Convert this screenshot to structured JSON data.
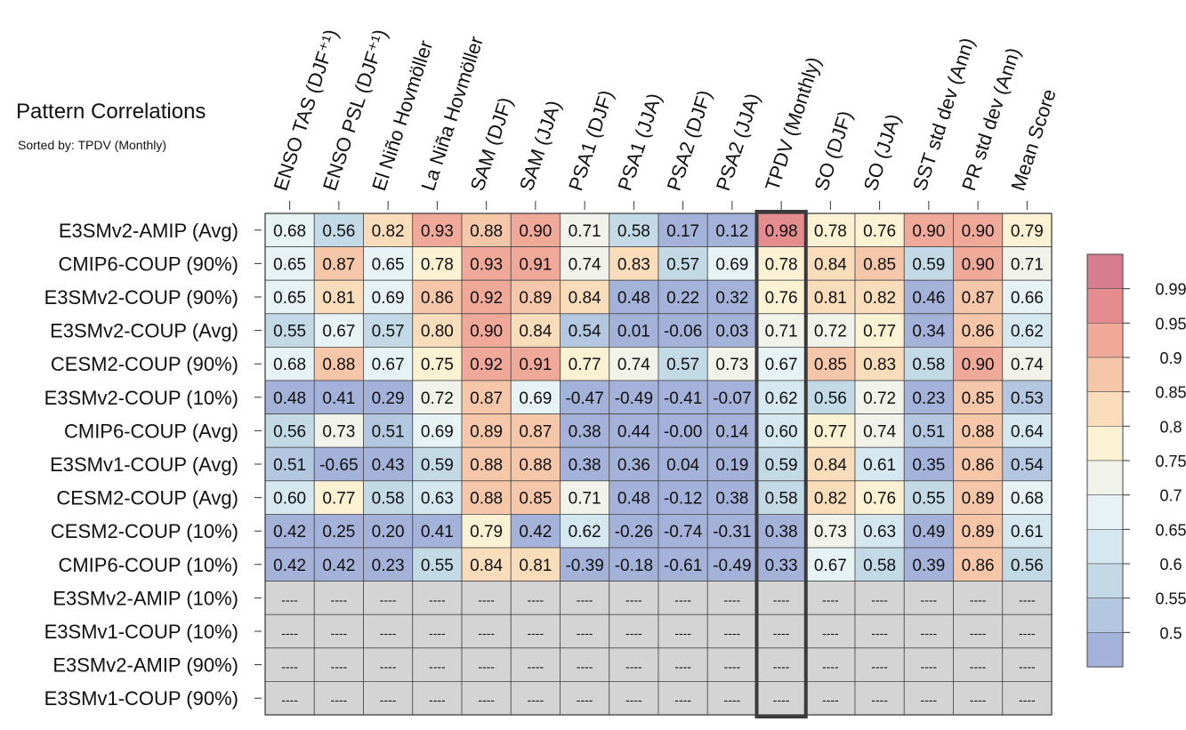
{
  "chart_data": {
    "type": "heatmap",
    "title": "Pattern Correlations",
    "subtitle": "Sorted by: TPDV (Monthly)",
    "columns": [
      "ENSO TAS (DJF⁺¹)",
      "ENSO PSL (DJF⁺¹)",
      "El Niño Hovmöller",
      "La Niña Hovmöller",
      "SAM (DJF)",
      "SAM (JJA)",
      "PSA1 (DJF)",
      "PSA1 (JJA)",
      "PSA2 (DJF)",
      "PSA2 (JJA)",
      "TPDV (Monthly)",
      "SO (DJF)",
      "SO (JJA)",
      "SST std dev (Ann)",
      "PR std dev (Ann)",
      "Mean Score"
    ],
    "rows": [
      "E3SMv2-AMIP (Avg)",
      "CMIP6-COUP (90%)",
      "E3SMv2-COUP (90%)",
      "E3SMv2-COUP (Avg)",
      "CESM2-COUP (90%)",
      "E3SMv2-COUP (10%)",
      "CMIP6-COUP (Avg)",
      "E3SMv1-COUP (Avg)",
      "CESM2-COUP (Avg)",
      "CESM2-COUP (10%)",
      "CMIP6-COUP (10%)",
      "E3SMv2-AMIP (10%)",
      "E3SMv1-COUP (10%)",
      "E3SMv2-AMIP (90%)",
      "E3SMv1-COUP (90%)"
    ],
    "values": [
      [
        "0.68",
        "0.56",
        "0.82",
        "0.93",
        "0.88",
        "0.90",
        "0.71",
        "0.58",
        "0.17",
        "0.12",
        "0.98",
        "0.78",
        "0.76",
        "0.90",
        "0.90",
        "0.79"
      ],
      [
        "0.65",
        "0.87",
        "0.65",
        "0.78",
        "0.93",
        "0.91",
        "0.74",
        "0.83",
        "0.57",
        "0.69",
        "0.78",
        "0.84",
        "0.85",
        "0.59",
        "0.90",
        "0.71"
      ],
      [
        "0.65",
        "0.81",
        "0.69",
        "0.86",
        "0.92",
        "0.89",
        "0.84",
        "0.48",
        "0.22",
        "0.32",
        "0.76",
        "0.81",
        "0.82",
        "0.46",
        "0.87",
        "0.66"
      ],
      [
        "0.55",
        "0.67",
        "0.57",
        "0.80",
        "0.90",
        "0.84",
        "0.54",
        "0.01",
        "-0.06",
        "0.03",
        "0.71",
        "0.72",
        "0.77",
        "0.34",
        "0.86",
        "0.62"
      ],
      [
        "0.68",
        "0.88",
        "0.67",
        "0.75",
        "0.92",
        "0.91",
        "0.77",
        "0.74",
        "0.57",
        "0.73",
        "0.67",
        "0.85",
        "0.83",
        "0.58",
        "0.90",
        "0.74"
      ],
      [
        "0.48",
        "0.41",
        "0.29",
        "0.72",
        "0.87",
        "0.69",
        "-0.47",
        "-0.49",
        "-0.41",
        "-0.07",
        "0.62",
        "0.56",
        "0.72",
        "0.23",
        "0.85",
        "0.53"
      ],
      [
        "0.56",
        "0.73",
        "0.51",
        "0.69",
        "0.89",
        "0.87",
        "0.38",
        "0.44",
        "-0.00",
        "0.14",
        "0.60",
        "0.77",
        "0.74",
        "0.51",
        "0.88",
        "0.64"
      ],
      [
        "0.51",
        "-0.65",
        "0.43",
        "0.59",
        "0.88",
        "0.88",
        "0.38",
        "0.36",
        "0.04",
        "0.19",
        "0.59",
        "0.84",
        "0.61",
        "0.35",
        "0.86",
        "0.54"
      ],
      [
        "0.60",
        "0.77",
        "0.58",
        "0.63",
        "0.88",
        "0.85",
        "0.71",
        "0.48",
        "-0.12",
        "0.38",
        "0.58",
        "0.82",
        "0.76",
        "0.55",
        "0.89",
        "0.68"
      ],
      [
        "0.42",
        "0.25",
        "0.20",
        "0.41",
        "0.79",
        "0.42",
        "0.62",
        "-0.26",
        "-0.74",
        "-0.31",
        "0.38",
        "0.73",
        "0.63",
        "0.49",
        "0.89",
        "0.61"
      ],
      [
        "0.42",
        "0.42",
        "0.23",
        "0.55",
        "0.84",
        "0.81",
        "-0.39",
        "-0.18",
        "-0.61",
        "-0.49",
        "0.33",
        "0.67",
        "0.58",
        "0.39",
        "0.86",
        "0.56"
      ],
      [
        "----",
        "----",
        "----",
        "----",
        "----",
        "----",
        "----",
        "----",
        "----",
        "----",
        "----",
        "----",
        "----",
        "----",
        "----",
        "----"
      ],
      [
        "----",
        "----",
        "----",
        "----",
        "----",
        "----",
        "----",
        "----",
        "----",
        "----",
        "----",
        "----",
        "----",
        "----",
        "----",
        "----"
      ],
      [
        "----",
        "----",
        "----",
        "----",
        "----",
        "----",
        "----",
        "----",
        "----",
        "----",
        "----",
        "----",
        "----",
        "----",
        "----",
        "----"
      ],
      [
        "----",
        "----",
        "----",
        "----",
        "----",
        "----",
        "----",
        "----",
        "----",
        "----",
        "----",
        "----",
        "----",
        "----",
        "----",
        "----"
      ]
    ],
    "highlight_column": "TPDV (Monthly)",
    "colorbar": {
      "labels": [
        "0.99",
        "0.95",
        "0.9",
        "0.85",
        "0.8",
        "0.75",
        "0.7",
        "0.65",
        "0.6",
        "0.55",
        "0.5"
      ],
      "thresholds": [
        0.5,
        0.55,
        0.6,
        0.65,
        0.7,
        0.75,
        0.8,
        0.85,
        0.9,
        0.95,
        0.99
      ],
      "colors": [
        "#a4b1d8",
        "#b4c7e0",
        "#c3d9e6",
        "#d6e8ef",
        "#e6f2f4",
        "#f1f3ea",
        "#fbf1d3",
        "#f9ddba",
        "#f6c6a9",
        "#f0a898",
        "#e48c8e",
        "#d87c90"
      ]
    },
    "missing_color": "#d4d4d4"
  }
}
